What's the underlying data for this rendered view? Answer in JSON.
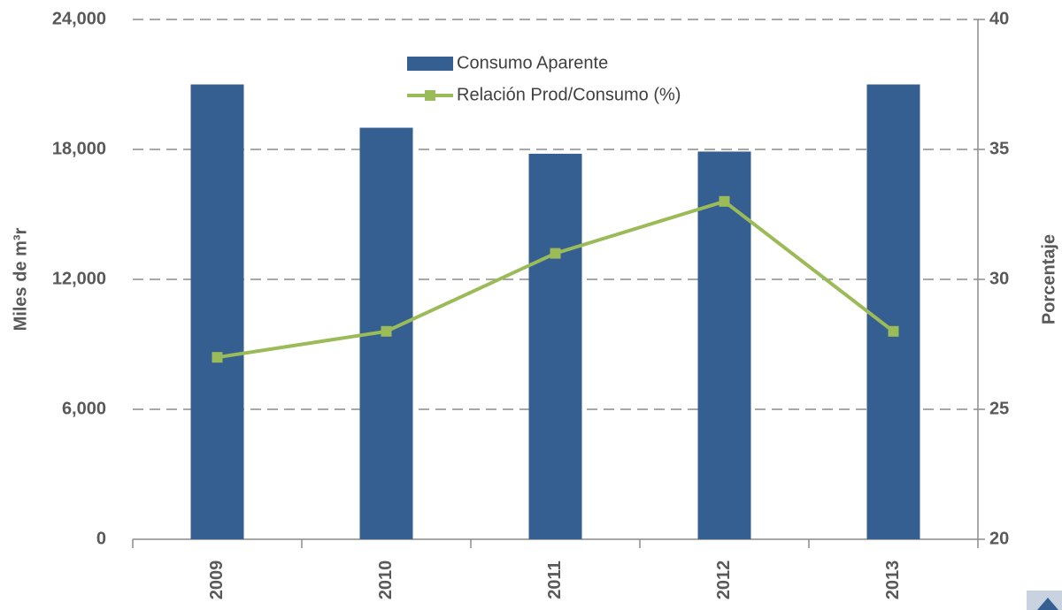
{
  "chart_data": {
    "type": "bar-line",
    "categories": [
      "2009",
      "2010",
      "2011",
      "2012",
      "2013"
    ],
    "series": [
      {
        "name": "Consumo Aparente",
        "type": "bar",
        "color": "#355f91",
        "values": [
          21000,
          19000,
          17800,
          17900,
          21000
        ]
      },
      {
        "name": "Relación Prod/Consumo (%)",
        "type": "line",
        "axis": "y2",
        "color": "#9bbb59",
        "values": [
          27,
          28,
          31,
          33,
          28
        ]
      }
    ],
    "ylabel": "Miles de m³r",
    "y2label": "Porcentaje",
    "ylim": [
      0,
      24000
    ],
    "yticks": [
      0,
      {
        "value": 6000,
        "label": "6,000"
      },
      {
        "value": 12000,
        "label": "12,000"
      },
      {
        "value": 18000,
        "label": "18,000"
      },
      {
        "value": 24000,
        "label": "24,000"
      }
    ],
    "y2lim": [
      20,
      40
    ],
    "y2ticks": [
      20,
      25,
      30,
      35,
      40
    ],
    "grid": true
  }
}
